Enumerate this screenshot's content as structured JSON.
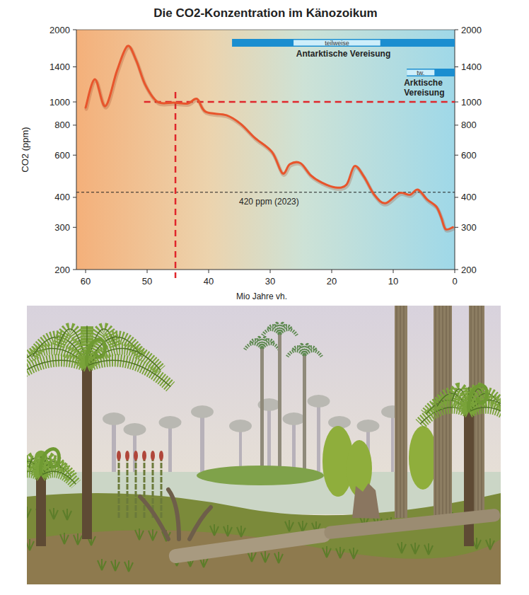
{
  "chart_data": {
    "type": "line",
    "title": "Die CO2-Konzentration im Känozoikum",
    "x_label": "Mio Jahre vh.",
    "y_label": "CO2 (ppm)",
    "x": [
      60,
      58.5,
      56.8,
      54.9,
      53.2,
      51.8,
      50.3,
      48.3,
      45.7,
      43.4,
      41.9,
      40.5,
      37.1,
      34.8,
      32.5,
      29.7,
      28,
      26.8,
      25.1,
      23.4,
      21.6,
      19.4,
      17.6,
      16.3,
      14.8,
      13.1,
      11.3,
      9,
      7.3,
      6,
      4.5,
      3,
      2.2,
      1.5,
      0.3
    ],
    "values": [
      947,
      1243,
      960,
      1350,
      1710,
      1494,
      1178,
      1000,
      994,
      985,
      1030,
      910,
      880,
      810,
      708,
      618,
      504,
      550,
      556,
      494,
      461,
      440,
      452,
      540,
      490,
      411,
      378,
      417,
      410,
      431,
      392,
      366,
      330,
      295,
      300
    ],
    "color": "#e8552c",
    "xlim": [
      61.5,
      0
    ],
    "xticks": [
      60,
      50,
      40,
      30,
      20,
      10,
      0
    ],
    "ylim": [
      200,
      2000
    ],
    "yticks": [
      200,
      300,
      400,
      600,
      800,
      1000,
      1400,
      2000
    ],
    "y2lim": [
      200,
      2000
    ],
    "y2ticks": [
      200,
      300,
      400,
      600,
      800,
      1000,
      1400,
      2000
    ],
    "log": "y",
    "grid": false,
    "annotations": [
      {
        "type": "hline",
        "y": 420,
        "label": "420 ppm (2023)",
        "color": "#222222",
        "line_style": "dashed"
      },
      {
        "type": "hline",
        "y": 1000,
        "x_from": 50.5,
        "x_to": 0,
        "color": "#e0262b",
        "line_style": "dashed"
      },
      {
        "type": "vline",
        "x": 45.4,
        "y_to": 1100,
        "color": "#e0262b",
        "line_style": "dashed"
      }
    ],
    "glaciations": [
      {
        "label": "Antarktische Vereisung",
        "from": 36.2,
        "to": 0,
        "partial_label": "teilweise",
        "partial_from": 26.2,
        "partial_to": 12.1,
        "color": "#1b8ed0"
      },
      {
        "label": "Arktische Vereisung",
        "from": 7.8,
        "to": 0,
        "partial_label": "tw.",
        "partial_from": 7.8,
        "partial_to": 3.3,
        "color": "#1b8ed0"
      }
    ]
  }
}
